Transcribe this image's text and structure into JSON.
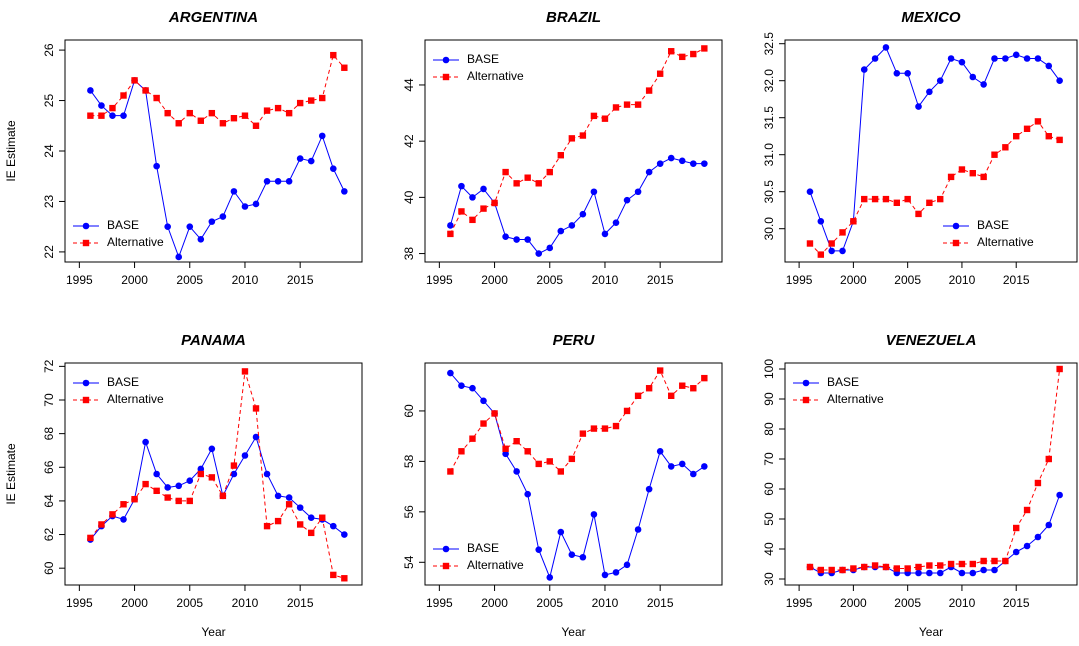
{
  "chart_data": [
    {
      "type": "line",
      "title": "ARGENTINA",
      "y_label": "IE Estimate",
      "x": [
        1996,
        1997,
        1998,
        1999,
        2000,
        2001,
        2002,
        2003,
        2004,
        2005,
        2006,
        2007,
        2008,
        2009,
        2010,
        2011,
        2012,
        2013,
        2014,
        2015,
        2016,
        2017,
        2018,
        2019
      ],
      "series": [
        {
          "name": "BASE",
          "color": "#0000ff",
          "linestyle": "solid",
          "marker": "circle",
          "values": [
            25.2,
            24.9,
            24.7,
            24.7,
            25.4,
            25.2,
            23.7,
            22.5,
            21.9,
            22.5,
            22.25,
            22.6,
            22.7,
            23.2,
            22.9,
            22.95,
            23.4,
            23.4,
            23.4,
            23.85,
            23.8,
            24.3,
            23.65,
            23.2
          ]
        },
        {
          "name": "Alternative",
          "color": "#ff0000",
          "linestyle": "dashed",
          "marker": "square",
          "values": [
            24.7,
            24.7,
            24.85,
            25.1,
            25.4,
            25.2,
            25.05,
            24.75,
            24.55,
            24.75,
            24.6,
            24.75,
            24.55,
            24.65,
            24.7,
            24.5,
            24.8,
            24.85,
            24.75,
            24.95,
            25.0,
            25.05,
            25.9,
            25.65
          ]
        }
      ],
      "xlim": [
        1993.7,
        2020.6
      ],
      "ylim": [
        21.8,
        26.2
      ],
      "xticks": [
        1995,
        2000,
        2005,
        2010,
        2015
      ],
      "yticks": [
        22,
        23,
        24,
        25,
        26
      ],
      "legend": "bottom-left"
    },
    {
      "type": "line",
      "title": "BRAZIL",
      "x": [
        1996,
        1997,
        1998,
        1999,
        2000,
        2001,
        2002,
        2003,
        2004,
        2005,
        2006,
        2007,
        2008,
        2009,
        2010,
        2011,
        2012,
        2013,
        2014,
        2015,
        2016,
        2017,
        2018,
        2019
      ],
      "series": [
        {
          "name": "BASE",
          "color": "#0000ff",
          "linestyle": "solid",
          "marker": "circle",
          "values": [
            39.0,
            40.4,
            40.0,
            40.3,
            39.8,
            38.6,
            38.5,
            38.5,
            38.0,
            38.2,
            38.8,
            39.0,
            39.4,
            40.2,
            38.7,
            39.1,
            39.9,
            40.2,
            40.9,
            41.2,
            41.4,
            41.3,
            41.2,
            41.2
          ]
        },
        {
          "name": "Alternative",
          "color": "#ff0000",
          "linestyle": "dashed",
          "marker": "square",
          "values": [
            38.7,
            39.5,
            39.2,
            39.6,
            39.8,
            40.9,
            40.5,
            40.7,
            40.5,
            40.9,
            41.5,
            42.1,
            42.2,
            42.9,
            42.8,
            43.2,
            43.3,
            43.3,
            43.8,
            44.4,
            45.2,
            45.0,
            45.1,
            45.3
          ]
        }
      ],
      "xlim": [
        1993.7,
        2020.6
      ],
      "ylim": [
        37.7,
        45.6
      ],
      "xticks": [
        1995,
        2000,
        2005,
        2010,
        2015
      ],
      "yticks": [
        38,
        40,
        42,
        44
      ],
      "legend": "top-left"
    },
    {
      "type": "line",
      "title": "MEXICO",
      "x": [
        1996,
        1997,
        1998,
        1999,
        2000,
        2001,
        2002,
        2003,
        2004,
        2005,
        2006,
        2007,
        2008,
        2009,
        2010,
        2011,
        2012,
        2013,
        2014,
        2015,
        2016,
        2017,
        2018,
        2019
      ],
      "series": [
        {
          "name": "BASE",
          "color": "#0000ff",
          "linestyle": "solid",
          "marker": "circle",
          "values": [
            30.5,
            30.1,
            29.7,
            29.7,
            30.1,
            32.15,
            32.3,
            32.45,
            32.1,
            32.1,
            31.65,
            31.85,
            32.0,
            32.3,
            32.25,
            32.05,
            31.95,
            32.3,
            32.3,
            32.35,
            32.3,
            32.3,
            32.2,
            32.0
          ]
        },
        {
          "name": "Alternative",
          "color": "#ff0000",
          "linestyle": "dashed",
          "marker": "square",
          "values": [
            29.8,
            29.65,
            29.8,
            29.95,
            30.1,
            30.4,
            30.4,
            30.4,
            30.35,
            30.4,
            30.2,
            30.35,
            30.4,
            30.7,
            30.8,
            30.75,
            30.7,
            31.0,
            31.1,
            31.25,
            31.35,
            31.45,
            31.25,
            31.2
          ]
        }
      ],
      "xlim": [
        1993.7,
        2020.6
      ],
      "ylim": [
        29.55,
        32.55
      ],
      "xticks": [
        1995,
        2000,
        2005,
        2010,
        2015
      ],
      "yticks": [
        {
          "value": 30,
          "label": "30.0"
        },
        30.5,
        {
          "value": 31,
          "label": "31.0"
        },
        31.5,
        {
          "value": 32,
          "label": "32.0"
        },
        32.5
      ],
      "legend": "bottom-right"
    },
    {
      "type": "line",
      "title": "PANAMA",
      "y_label": "IE Estimate",
      "x_label": "Year",
      "x": [
        1996,
        1997,
        1998,
        1999,
        2000,
        2001,
        2002,
        2003,
        2004,
        2005,
        2006,
        2007,
        2008,
        2009,
        2010,
        2011,
        2012,
        2013,
        2014,
        2015,
        2016,
        2017,
        2018,
        2019
      ],
      "series": [
        {
          "name": "BASE",
          "color": "#0000ff",
          "linestyle": "solid",
          "marker": "circle",
          "values": [
            61.7,
            62.5,
            63.1,
            62.9,
            64.1,
            67.5,
            65.6,
            64.8,
            64.9,
            65.2,
            65.9,
            67.1,
            64.3,
            65.6,
            66.7,
            67.8,
            65.6,
            64.3,
            64.2,
            63.6,
            63.0,
            62.9,
            62.5,
            62.0
          ]
        },
        {
          "name": "Alternative",
          "color": "#ff0000",
          "linestyle": "dashed",
          "marker": "square",
          "values": [
            61.8,
            62.6,
            63.2,
            63.8,
            64.1,
            65.0,
            64.6,
            64.2,
            64.0,
            64.0,
            65.6,
            65.4,
            64.3,
            66.1,
            71.7,
            69.5,
            62.5,
            62.8,
            63.8,
            62.6,
            62.1,
            63.0,
            59.6,
            59.4
          ]
        }
      ],
      "xlim": [
        1993.7,
        2020.6
      ],
      "ylim": [
        59.0,
        72.2
      ],
      "xticks": [
        1995,
        2000,
        2005,
        2010,
        2015
      ],
      "yticks": [
        60,
        62,
        64,
        66,
        68,
        70,
        72
      ],
      "legend": "top-left"
    },
    {
      "type": "line",
      "title": "PERU",
      "x_label": "Year",
      "x": [
        1996,
        1997,
        1998,
        1999,
        2000,
        2001,
        2002,
        2003,
        2004,
        2005,
        2006,
        2007,
        2008,
        2009,
        2010,
        2011,
        2012,
        2013,
        2014,
        2015,
        2016,
        2017,
        2018,
        2019
      ],
      "series": [
        {
          "name": "BASE",
          "color": "#0000ff",
          "linestyle": "solid",
          "marker": "circle",
          "values": [
            61.5,
            61.0,
            60.9,
            60.4,
            59.9,
            58.3,
            57.6,
            56.7,
            54.5,
            53.4,
            55.2,
            54.3,
            54.2,
            55.9,
            53.5,
            53.6,
            53.9,
            55.3,
            56.9,
            58.4,
            57.8,
            57.9,
            57.5,
            57.8
          ]
        },
        {
          "name": "Alternative",
          "color": "#ff0000",
          "linestyle": "dashed",
          "marker": "square",
          "values": [
            57.6,
            58.4,
            58.9,
            59.5,
            59.9,
            58.5,
            58.8,
            58.4,
            57.9,
            58.0,
            57.6,
            58.1,
            59.1,
            59.3,
            59.3,
            59.4,
            60.0,
            60.6,
            60.9,
            61.6,
            60.6,
            61.0,
            60.9,
            61.3
          ]
        }
      ],
      "xlim": [
        1993.7,
        2020.6
      ],
      "ylim": [
        53.1,
        61.9
      ],
      "xticks": [
        1995,
        2000,
        2005,
        2010,
        2015
      ],
      "yticks": [
        54,
        56,
        58,
        60
      ],
      "legend": "bottom-left"
    },
    {
      "type": "line",
      "title": "VENEZUELA",
      "x_label": "Year",
      "x": [
        1996,
        1997,
        1998,
        1999,
        2000,
        2001,
        2002,
        2003,
        2004,
        2005,
        2006,
        2007,
        2008,
        2009,
        2010,
        2011,
        2012,
        2013,
        2014,
        2015,
        2016,
        2017,
        2018,
        2019
      ],
      "series": [
        {
          "name": "BASE",
          "color": "#0000ff",
          "linestyle": "solid",
          "marker": "circle",
          "values": [
            34,
            32,
            32,
            33,
            33,
            34,
            34,
            34,
            32,
            32,
            32,
            32,
            32,
            34,
            32,
            32,
            33,
            33,
            36,
            39,
            41,
            44,
            48,
            58
          ]
        },
        {
          "name": "Alternative",
          "color": "#ff0000",
          "linestyle": "dashed",
          "marker": "square",
          "values": [
            34,
            33,
            33,
            33,
            33.5,
            34,
            34.5,
            34,
            33.5,
            33.5,
            34,
            34.5,
            34.5,
            35,
            35,
            35,
            36,
            36,
            36,
            47,
            53,
            62,
            70,
            100
          ]
        }
      ],
      "xlim": [
        1993.7,
        2020.6
      ],
      "ylim": [
        28,
        102
      ],
      "xticks": [
        1995,
        2000,
        2005,
        2010,
        2015
      ],
      "yticks": [
        30,
        40,
        50,
        60,
        70,
        80,
        90,
        100
      ],
      "legend": "top-left"
    }
  ]
}
